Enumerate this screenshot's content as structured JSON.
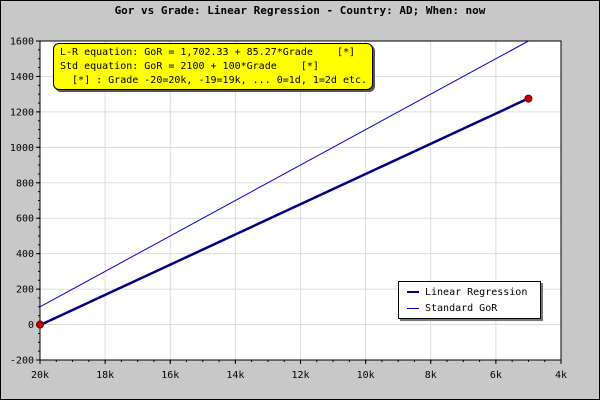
{
  "chart_data": {
    "type": "line",
    "title": "Gor vs Grade: Linear Regression - Country: AD; When: now",
    "xlabel": "",
    "ylabel": "",
    "x_tick_labels": [
      "20k",
      "18k",
      "16k",
      "14k",
      "12k",
      "10k",
      "8k",
      "6k",
      "4k"
    ],
    "x_tick_values": [
      -20,
      -18,
      -16,
      -14,
      -12,
      -10,
      -8,
      -6,
      -4
    ],
    "xlim": [
      -20,
      -4
    ],
    "y_tick_values": [
      -200,
      0,
      200,
      400,
      600,
      800,
      1000,
      1200,
      1400,
      1600
    ],
    "ylim": [
      -200,
      1600
    ],
    "grid": true,
    "legend_position": "bottom-right",
    "series": [
      {
        "name": "Linear Regression",
        "color": "#000080",
        "x": [
          -20,
          -5
        ],
        "y": [
          -3.07,
          1275.98
        ],
        "markers": [
          {
            "x": -20,
            "y": 0,
            "color": "#cc0000"
          },
          {
            "x": -5,
            "y": 1275,
            "color": "#cc0000"
          }
        ]
      },
      {
        "name": "Standard GoR",
        "color": "#0000cc",
        "x": [
          -20,
          -5
        ],
        "y": [
          100,
          1600
        ]
      }
    ],
    "annotation_lines": [
      "L-R equation: GoR = 1,702.33 + 85.27*Grade    [*]",
      "Std equation: GoR = 2100 + 100*Grade    [*]",
      "  [*] : Grade -20=20k, -19=19k, ... 0=1d, 1=2d etc."
    ]
  }
}
